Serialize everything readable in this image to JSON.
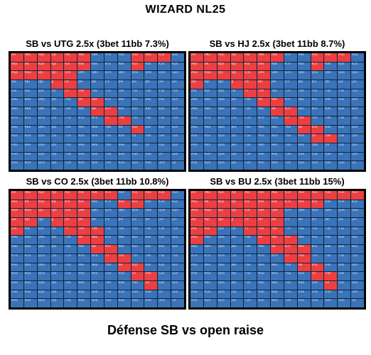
{
  "page": {
    "title": "WIZARD NL25",
    "footer": "Défense SB vs open raise"
  },
  "hand_labels": [
    [
      "AA",
      "AKs",
      "AQs",
      "AJs",
      "ATs",
      "A9s",
      "A8s",
      "A7s",
      "A6s",
      "A5s",
      "A4s",
      "A3s",
      "A2s"
    ],
    [
      "AKo",
      "KK",
      "KQs",
      "KJs",
      "KTs",
      "K9s",
      "K8s",
      "K7s",
      "K6s",
      "K5s",
      "K4s",
      "K3s",
      "K2s"
    ],
    [
      "AQo",
      "KQo",
      "QQ",
      "QJs",
      "QTs",
      "Q9s",
      "Q8s",
      "Q7s",
      "Q6s",
      "Q5s",
      "Q4s",
      "Q3s",
      "Q2s"
    ],
    [
      "AJo",
      "KJo",
      "QJo",
      "JJ",
      "JTs",
      "J9s",
      "J8s",
      "J7s",
      "J6s",
      "J5s",
      "J4s",
      "J3s",
      "J2s"
    ],
    [
      "ATo",
      "KTo",
      "QTo",
      "JTo",
      "TT",
      "T9s",
      "T8s",
      "T7s",
      "T6s",
      "T5s",
      "T4s",
      "T3s",
      "T2s"
    ],
    [
      "A9o",
      "K9o",
      "Q9o",
      "J9o",
      "T9o",
      "99",
      "98s",
      "97s",
      "96s",
      "95s",
      "94s",
      "93s",
      "92s"
    ],
    [
      "A8o",
      "K8o",
      "Q8o",
      "J8o",
      "T8o",
      "98o",
      "88",
      "87s",
      "86s",
      "85s",
      "84s",
      "83s",
      "82s"
    ],
    [
      "A7o",
      "K7o",
      "Q7o",
      "J7o",
      "T7o",
      "97o",
      "87o",
      "77",
      "76s",
      "75s",
      "74s",
      "73s",
      "72s"
    ],
    [
      "A6o",
      "K6o",
      "Q6o",
      "J6o",
      "T6o",
      "96o",
      "86o",
      "76o",
      "66",
      "65s",
      "64s",
      "63s",
      "62s"
    ],
    [
      "A5o",
      "K5o",
      "Q5o",
      "J5o",
      "T5o",
      "95o",
      "85o",
      "75o",
      "65o",
      "55",
      "54s",
      "53s",
      "52s"
    ],
    [
      "A4o",
      "K4o",
      "Q4o",
      "J4o",
      "T4o",
      "94o",
      "84o",
      "74o",
      "64o",
      "54o",
      "44",
      "43s",
      "42s"
    ],
    [
      "A3o",
      "K3o",
      "Q3o",
      "J3o",
      "T3o",
      "93o",
      "83o",
      "73o",
      "63o",
      "53o",
      "43o",
      "33",
      "32s"
    ],
    [
      "A2o",
      "K2o",
      "Q2o",
      "J2o",
      "T2o",
      "92o",
      "82o",
      "72o",
      "62o",
      "52o",
      "42o",
      "32o",
      "22"
    ]
  ],
  "colors": {
    "fold_call": "#3a73b8",
    "three_bet": "#ec3f41",
    "grid_line": "#0e2540",
    "frame": "#000000"
  },
  "chart_data": [
    {
      "type": "heatmap",
      "title": "SB vs UTG 2.5x (3bet 11bb 7.3%)",
      "three_bet_hands": [
        "AA",
        "AKs",
        "AQs",
        "AJs",
        "ATs",
        "A9s",
        "A5s",
        "A4s",
        "A3s",
        "AKo",
        "KK",
        "KQs",
        "KJs",
        "KTs",
        "K9s",
        "K5s",
        "AQo",
        "KQo",
        "QQ",
        "QJs",
        "QTs",
        "JJ",
        "JTs",
        "TT",
        "T9s",
        "99",
        "98s",
        "88",
        "87s",
        "77",
        "76s",
        "65s"
      ]
    },
    {
      "type": "heatmap",
      "title": "SB vs HJ 2.5x (3bet 11bb 8.7%)",
      "three_bet_hands": [
        "AA",
        "AKs",
        "AQs",
        "AJs",
        "ATs",
        "A9s",
        "A8s",
        "A5s",
        "A4s",
        "A3s",
        "AKo",
        "KK",
        "KQs",
        "KJs",
        "KTs",
        "K9s",
        "K5s",
        "AQo",
        "KQo",
        "QQ",
        "QJs",
        "QTs",
        "Q9s",
        "AJo",
        "JJ",
        "JTs",
        "J9s",
        "TT",
        "T9s",
        "99",
        "98s",
        "88",
        "87s",
        "77",
        "76s",
        "66",
        "65s",
        "55",
        "54s"
      ]
    },
    {
      "type": "heatmap",
      "title": "SB vs CO 2.5x (3bet 11bb 10.8%)",
      "three_bet_hands": [
        "AA",
        "AKs",
        "AQs",
        "AJs",
        "ATs",
        "A9s",
        "A8s",
        "A7s",
        "A5s",
        "A4s",
        "A3s",
        "AKo",
        "KK",
        "KQs",
        "KJs",
        "KTs",
        "K9s",
        "K6s",
        "K5s",
        "AQo",
        "KQo",
        "QQ",
        "QJs",
        "QTs",
        "Q9s",
        "AJo",
        "KJo",
        "JJ",
        "JTs",
        "J9s",
        "ATo",
        "TT",
        "T9s",
        "T8s",
        "99",
        "98s",
        "88",
        "87s",
        "77",
        "76s",
        "66",
        "65s",
        "55",
        "54s",
        "44"
      ]
    },
    {
      "type": "heatmap",
      "title": "SB vs BU 2.5x (3bet 11bb 15%)",
      "three_bet_hands": [
        "AA",
        "AKs",
        "AQs",
        "AJs",
        "ATs",
        "A9s",
        "A8s",
        "A7s",
        "A6s",
        "A5s",
        "A4s",
        "A3s",
        "A2s",
        "AKo",
        "KK",
        "KQs",
        "KJs",
        "KTs",
        "K9s",
        "K8s",
        "K7s",
        "K6s",
        "K5s",
        "AQo",
        "KQo",
        "QQ",
        "QJs",
        "QTs",
        "Q9s",
        "Q8s",
        "AJo",
        "KJo",
        "QJo",
        "JJ",
        "JTs",
        "J9s",
        "J8s",
        "ATo",
        "KTo",
        "TT",
        "T9s",
        "T8s",
        "A9o",
        "99",
        "98s",
        "97s",
        "88",
        "87s",
        "86s",
        "77",
        "76s",
        "66",
        "65s",
        "55",
        "54s",
        "44"
      ]
    }
  ]
}
